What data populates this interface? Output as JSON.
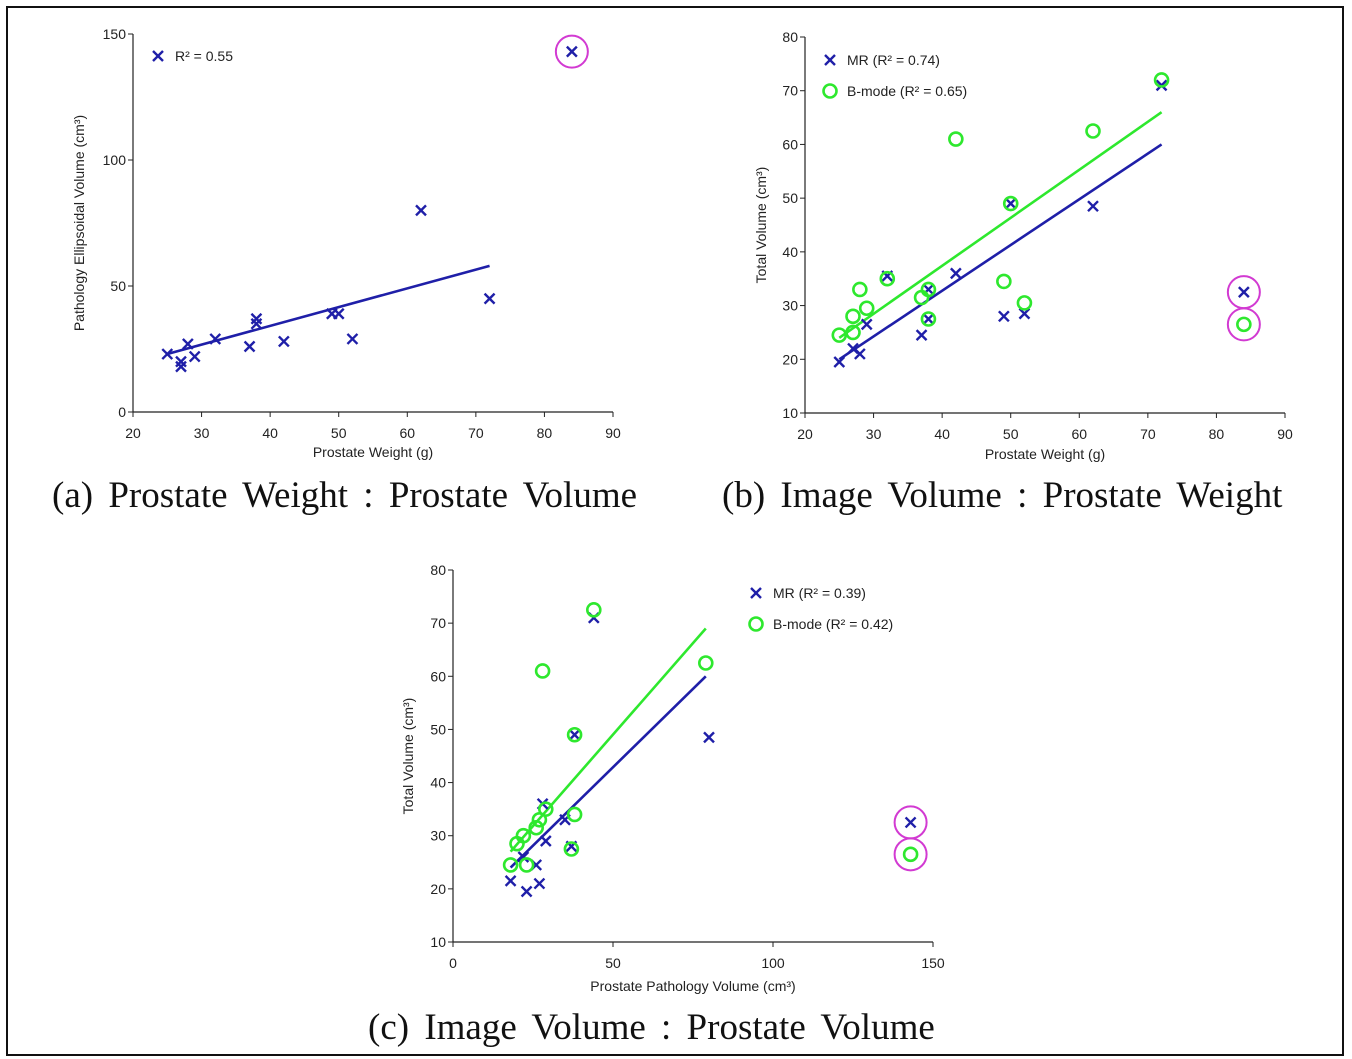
{
  "colors": {
    "mr": "#1f1fa8",
    "bmode": "#2ee82e",
    "outlier": "#d23ad2",
    "axis": "#222222"
  },
  "captions": {
    "a": "(a) Prostate Weight : Prostate Volume",
    "b": "(b) Image Volume : Prostate Weight",
    "c": "(c) Image Volume : Prostate Volume"
  },
  "chart_data": [
    {
      "id": "a",
      "type": "scatter",
      "xlabel": "Prostate Weight (g)",
      "ylabel": "Pathology Ellipsoidal Volume (cm³)",
      "xlim": [
        20,
        90
      ],
      "ylim": [
        0,
        150
      ],
      "xticks": [
        20,
        30,
        40,
        50,
        60,
        70,
        80,
        90
      ],
      "yticks": [
        0,
        50,
        100,
        150
      ],
      "series": [
        {
          "name": "R² = 0.55",
          "marker": "x",
          "color": "#1f1fa8",
          "points": [
            [
              25,
              23
            ],
            [
              27,
              20
            ],
            [
              27,
              18
            ],
            [
              28,
              27
            ],
            [
              29,
              22
            ],
            [
              32,
              29
            ],
            [
              37,
              26
            ],
            [
              38,
              37
            ],
            [
              38,
              35
            ],
            [
              42,
              28
            ],
            [
              49,
              39
            ],
            [
              50,
              39
            ],
            [
              52,
              29
            ],
            [
              62,
              80
            ],
            [
              72,
              45
            ],
            [
              84,
              143
            ]
          ],
          "fit": [
            [
              25,
              23
            ],
            [
              72,
              58
            ]
          ]
        }
      ],
      "outliers": [
        [
          84,
          143
        ]
      ]
    },
    {
      "id": "b",
      "type": "scatter",
      "xlabel": "Prostate Weight (g)",
      "ylabel": "Total Volume (cm³)",
      "xlim": [
        20,
        90
      ],
      "ylim": [
        10,
        80
      ],
      "xticks": [
        20,
        30,
        40,
        50,
        60,
        70,
        80,
        90
      ],
      "yticks": [
        10,
        20,
        30,
        40,
        50,
        60,
        70,
        80
      ],
      "series": [
        {
          "name": "MR (R² = 0.74)",
          "marker": "x",
          "color": "#1f1fa8",
          "points": [
            [
              25,
              19.5
            ],
            [
              27,
              22
            ],
            [
              28,
              21
            ],
            [
              29,
              26.5
            ],
            [
              32,
              35.5
            ],
            [
              37,
              24.5
            ],
            [
              38,
              27.5
            ],
            [
              38,
              33
            ],
            [
              42,
              36
            ],
            [
              49,
              28
            ],
            [
              50,
              49
            ],
            [
              52,
              28.5
            ],
            [
              62,
              48.5
            ],
            [
              72,
              71
            ],
            [
              84,
              32.5
            ]
          ],
          "fit": [
            [
              25,
              20
            ],
            [
              72,
              60
            ]
          ]
        },
        {
          "name": "B-mode (R² = 0.65)",
          "marker": "o",
          "color": "#2ee82e",
          "points": [
            [
              25,
              24.5
            ],
            [
              27,
              28
            ],
            [
              27,
              25
            ],
            [
              28,
              33
            ],
            [
              29,
              29.5
            ],
            [
              32,
              35
            ],
            [
              37,
              31.5
            ],
            [
              38,
              33
            ],
            [
              38,
              27.5
            ],
            [
              42,
              61
            ],
            [
              49,
              34.5
            ],
            [
              50,
              49
            ],
            [
              52,
              30.5
            ],
            [
              62,
              62.5
            ],
            [
              72,
              72
            ],
            [
              84,
              26.5
            ]
          ],
          "fit": [
            [
              25,
              24
            ],
            [
              72,
              66
            ]
          ]
        }
      ],
      "outliers": [
        [
          84,
          32.5
        ],
        [
          84,
          26.5
        ]
      ]
    },
    {
      "id": "c",
      "type": "scatter",
      "xlabel": "Prostate Pathology Volume (cm³)",
      "ylabel": "Total Volume (cm³)",
      "xlim": [
        0,
        150
      ],
      "ylim": [
        10,
        80
      ],
      "xticks": [
        0,
        50,
        100,
        150
      ],
      "yticks": [
        10,
        20,
        30,
        40,
        50,
        60,
        70,
        80
      ],
      "series": [
        {
          "name": "MR (R² = 0.39)",
          "marker": "x",
          "color": "#1f1fa8",
          "points": [
            [
              18,
              21.5
            ],
            [
              23,
              19.5
            ],
            [
              26,
              24.5
            ],
            [
              27,
              21
            ],
            [
              28,
              36
            ],
            [
              29,
              29
            ],
            [
              22,
              26
            ],
            [
              35,
              33
            ],
            [
              37,
              28
            ],
            [
              38,
              49
            ],
            [
              44,
              71
            ],
            [
              80,
              48.5
            ],
            [
              143,
              32.5
            ]
          ],
          "fit": [
            [
              18,
              24
            ],
            [
              79,
              60
            ]
          ]
        },
        {
          "name": "B-mode (R² = 0.42)",
          "marker": "o",
          "color": "#2ee82e",
          "points": [
            [
              18,
              24.5
            ],
            [
              20,
              28.5
            ],
            [
              22,
              30
            ],
            [
              23,
              24.5
            ],
            [
              26,
              31.5
            ],
            [
              27,
              33
            ],
            [
              28,
              61
            ],
            [
              29,
              35
            ],
            [
              37,
              27.5
            ],
            [
              38,
              34
            ],
            [
              38,
              49
            ],
            [
              44,
              72.5
            ],
            [
              79,
              62.5
            ],
            [
              143,
              26.5
            ]
          ],
          "fit": [
            [
              18,
              27
            ],
            [
              79,
              69
            ]
          ]
        }
      ],
      "outliers": [
        [
          143,
          32.5
        ],
        [
          143,
          26.5
        ]
      ]
    }
  ]
}
